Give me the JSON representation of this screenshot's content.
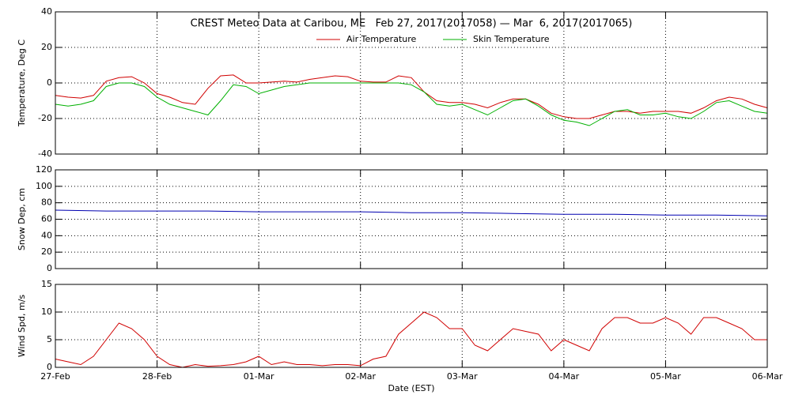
{
  "chart_data": [
    {
      "type": "line",
      "title": "CREST Meteo Data at Caribou, ME   Feb 27, 2017(2017058) — Mar  6, 2017(2017065)",
      "y_label": "Temperature, Deg C",
      "x": [
        0,
        0.125,
        0.25,
        0.375,
        0.5,
        0.625,
        0.75,
        0.875,
        1,
        1.125,
        1.25,
        1.375,
        1.5,
        1.625,
        1.75,
        1.875,
        2,
        2.125,
        2.25,
        2.375,
        2.5,
        2.625,
        2.75,
        2.875,
        3,
        3.125,
        3.25,
        3.375,
        3.5,
        3.625,
        3.75,
        3.875,
        4,
        4.125,
        4.25,
        4.375,
        4.5,
        4.625,
        4.75,
        4.875,
        5,
        5.125,
        5.25,
        5.375,
        5.5,
        5.625,
        5.75,
        5.875,
        6,
        6.125,
        6.25,
        6.375,
        6.5,
        6.625,
        6.75,
        6.875,
        7
      ],
      "series": [
        {
          "name": "Air Temperature",
          "color": "#d00000",
          "values": [
            -7,
            -8,
            -8.5,
            -7,
            1,
            3,
            3.5,
            0,
            -6,
            -8,
            -11,
            -12,
            -3,
            4,
            4.5,
            0,
            0,
            0.5,
            1,
            0.5,
            2,
            3,
            4,
            3.5,
            1,
            0.5,
            0.5,
            4,
            3,
            -5,
            -10,
            -11,
            -11,
            -12,
            -14,
            -11,
            -9,
            -9,
            -12,
            -17,
            -19,
            -20,
            -20,
            -18,
            -16,
            -16,
            -17,
            -16,
            -16,
            -16,
            -17,
            -14,
            -10,
            -8,
            -9,
            -12,
            -14
          ]
        },
        {
          "name": "Skin Temperature",
          "color": "#00b000",
          "values": [
            -12,
            -13,
            -12,
            -10,
            -2,
            0,
            0,
            -2,
            -8,
            -12,
            -14,
            -16,
            -18,
            -10,
            -1,
            -2,
            -6,
            -4,
            -2,
            -1,
            0,
            0,
            0,
            0,
            0,
            0,
            0,
            0,
            -1,
            -5,
            -12,
            -13,
            -12,
            -15,
            -18,
            -14,
            -10,
            -9,
            -13,
            -18,
            -21,
            -22,
            -24,
            -20,
            -16,
            -15,
            -18,
            -18,
            -17,
            -19,
            -20,
            -16,
            -11,
            -10,
            -13,
            -16,
            -17
          ]
        }
      ],
      "xlim": [
        0,
        7
      ],
      "xticks": [
        0,
        1,
        2,
        3,
        4,
        5,
        6,
        7
      ],
      "ylim": [
        -40,
        40
      ],
      "yticks": [
        -40,
        -20,
        0,
        20,
        40
      ],
      "grid": true,
      "legend": "top"
    },
    {
      "type": "line",
      "y_label": "Snow Dep, cm",
      "x": [
        0,
        0.5,
        1,
        1.5,
        2,
        2.5,
        3,
        3.5,
        4,
        4.5,
        5,
        5.5,
        6,
        6.5,
        7
      ],
      "values": [
        71,
        70,
        70,
        70,
        69,
        69,
        69,
        68,
        68,
        67,
        66,
        66,
        65,
        65,
        64
      ],
      "color": "#0000b0",
      "xlim": [
        0,
        7
      ],
      "xticks": [
        0,
        1,
        2,
        3,
        4,
        5,
        6,
        7
      ],
      "ylim": [
        0,
        120
      ],
      "yticks": [
        0,
        20,
        40,
        60,
        80,
        100,
        120
      ],
      "grid": true
    },
    {
      "type": "line",
      "y_label": "Wind Spd, m/s",
      "x_label": "Date (EST)",
      "x": [
        0,
        0.125,
        0.25,
        0.375,
        0.5,
        0.625,
        0.75,
        0.875,
        1,
        1.125,
        1.25,
        1.375,
        1.5,
        1.625,
        1.75,
        1.875,
        2,
        2.125,
        2.25,
        2.375,
        2.5,
        2.625,
        2.75,
        2.875,
        3,
        3.125,
        3.25,
        3.375,
        3.5,
        3.625,
        3.75,
        3.875,
        4,
        4.125,
        4.25,
        4.375,
        4.5,
        4.625,
        4.75,
        4.875,
        5,
        5.125,
        5.25,
        5.375,
        5.5,
        5.625,
        5.75,
        5.875,
        6,
        6.125,
        6.25,
        6.375,
        6.5,
        6.625,
        6.75,
        6.875,
        7
      ],
      "values": [
        1.5,
        1,
        0.5,
        2,
        5,
        8,
        7,
        5,
        2,
        0.5,
        0,
        0.5,
        0.2,
        0.3,
        0.5,
        1,
        2,
        0.5,
        1,
        0.5,
        0.5,
        0.3,
        0.5,
        0.5,
        0.3,
        1.5,
        2,
        6,
        8,
        10,
        9,
        7,
        7,
        4,
        3,
        5,
        7,
        6.5,
        6,
        3,
        5,
        4,
        3,
        7,
        9,
        9,
        8,
        8,
        9,
        8,
        6,
        9,
        9,
        8,
        7,
        5,
        5
      ],
      "color": "#d00000",
      "xlim": [
        0,
        7
      ],
      "xticks": [
        {
          "value": 0,
          "label": "27-Feb"
        },
        {
          "value": 1,
          "label": "28-Feb"
        },
        {
          "value": 2,
          "label": "01-Mar"
        },
        {
          "value": 3,
          "label": "02-Mar"
        },
        {
          "value": 4,
          "label": "03-Mar"
        },
        {
          "value": 5,
          "label": "04-Mar"
        },
        {
          "value": 6,
          "label": "05-Mar"
        },
        {
          "value": 7,
          "label": "06-Mar"
        }
      ],
      "ylim": [
        0,
        15
      ],
      "yticks": [
        0,
        5,
        10,
        15
      ],
      "grid": true
    }
  ]
}
